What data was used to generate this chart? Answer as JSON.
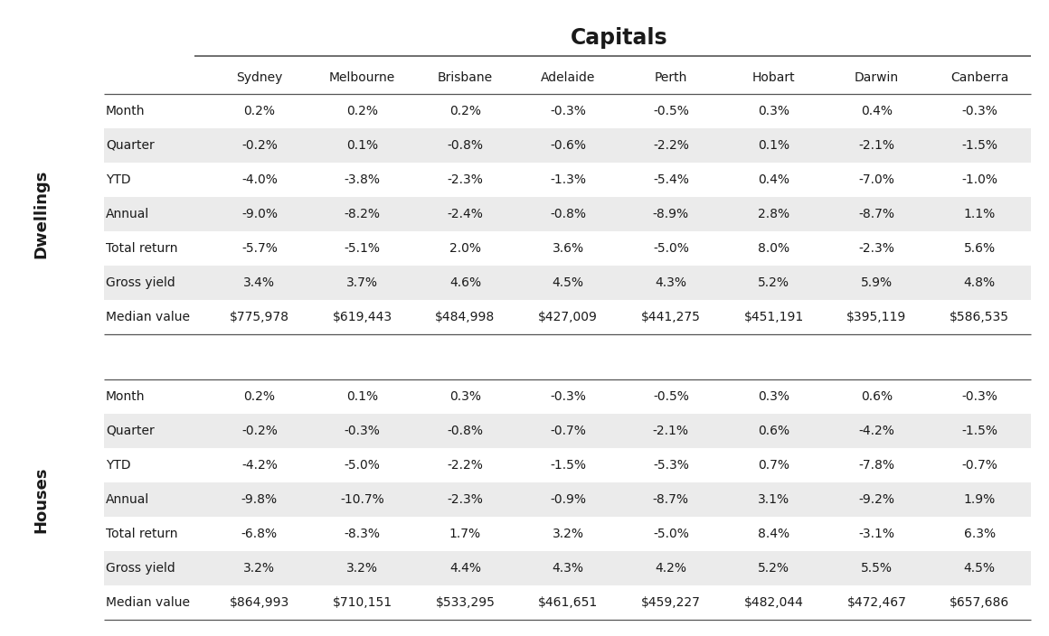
{
  "title": "Capitals",
  "columns": [
    "Sydney",
    "Melbourne",
    "Brisbane",
    "Adelaide",
    "Perth",
    "Hobart",
    "Darwin",
    "Canberra"
  ],
  "dwellings": {
    "label": "Dwellings",
    "rows": [
      {
        "name": "Month",
        "values": [
          "0.2%",
          "0.2%",
          "0.2%",
          "-0.3%",
          "-0.5%",
          "0.3%",
          "0.4%",
          "-0.3%"
        ]
      },
      {
        "name": "Quarter",
        "values": [
          "-0.2%",
          "0.1%",
          "-0.8%",
          "-0.6%",
          "-2.2%",
          "0.1%",
          "-2.1%",
          "-1.5%"
        ]
      },
      {
        "name": "YTD",
        "values": [
          "-4.0%",
          "-3.8%",
          "-2.3%",
          "-1.3%",
          "-5.4%",
          "0.4%",
          "-7.0%",
          "-1.0%"
        ]
      },
      {
        "name": "Annual",
        "values": [
          "-9.0%",
          "-8.2%",
          "-2.4%",
          "-0.8%",
          "-8.9%",
          "2.8%",
          "-8.7%",
          "1.1%"
        ]
      },
      {
        "name": "Total return",
        "values": [
          "-5.7%",
          "-5.1%",
          "2.0%",
          "3.6%",
          "-5.0%",
          "8.0%",
          "-2.3%",
          "5.6%"
        ]
      },
      {
        "name": "Gross yield",
        "values": [
          "3.4%",
          "3.7%",
          "4.6%",
          "4.5%",
          "4.3%",
          "5.2%",
          "5.9%",
          "4.8%"
        ]
      },
      {
        "name": "Median value",
        "values": [
          "$775,978",
          "$619,443",
          "$484,998",
          "$427,009",
          "$441,275",
          "$451,191",
          "$395,119",
          "$586,535"
        ]
      }
    ]
  },
  "houses": {
    "label": "Houses",
    "rows": [
      {
        "name": "Month",
        "values": [
          "0.2%",
          "0.1%",
          "0.3%",
          "-0.3%",
          "-0.5%",
          "0.3%",
          "0.6%",
          "-0.3%"
        ]
      },
      {
        "name": "Quarter",
        "values": [
          "-0.2%",
          "-0.3%",
          "-0.8%",
          "-0.7%",
          "-2.1%",
          "0.6%",
          "-4.2%",
          "-1.5%"
        ]
      },
      {
        "name": "YTD",
        "values": [
          "-4.2%",
          "-5.0%",
          "-2.2%",
          "-1.5%",
          "-5.3%",
          "0.7%",
          "-7.8%",
          "-0.7%"
        ]
      },
      {
        "name": "Annual",
        "values": [
          "-9.8%",
          "-10.7%",
          "-2.3%",
          "-0.9%",
          "-8.7%",
          "3.1%",
          "-9.2%",
          "1.9%"
        ]
      },
      {
        "name": "Total return",
        "values": [
          "-6.8%",
          "-8.3%",
          "1.7%",
          "3.2%",
          "-5.0%",
          "8.4%",
          "-3.1%",
          "6.3%"
        ]
      },
      {
        "name": "Gross yield",
        "values": [
          "3.2%",
          "3.2%",
          "4.4%",
          "4.3%",
          "4.2%",
          "5.2%",
          "5.5%",
          "4.5%"
        ]
      },
      {
        "name": "Median value",
        "values": [
          "$864,993",
          "$710,151",
          "$533,295",
          "$461,651",
          "$459,227",
          "$482,044",
          "$472,467",
          "$657,686"
        ]
      }
    ]
  },
  "bg_color": "#ffffff",
  "text_color": "#1a1a1a",
  "line_color": "#555555",
  "alt_row_color": "#ebebeb"
}
